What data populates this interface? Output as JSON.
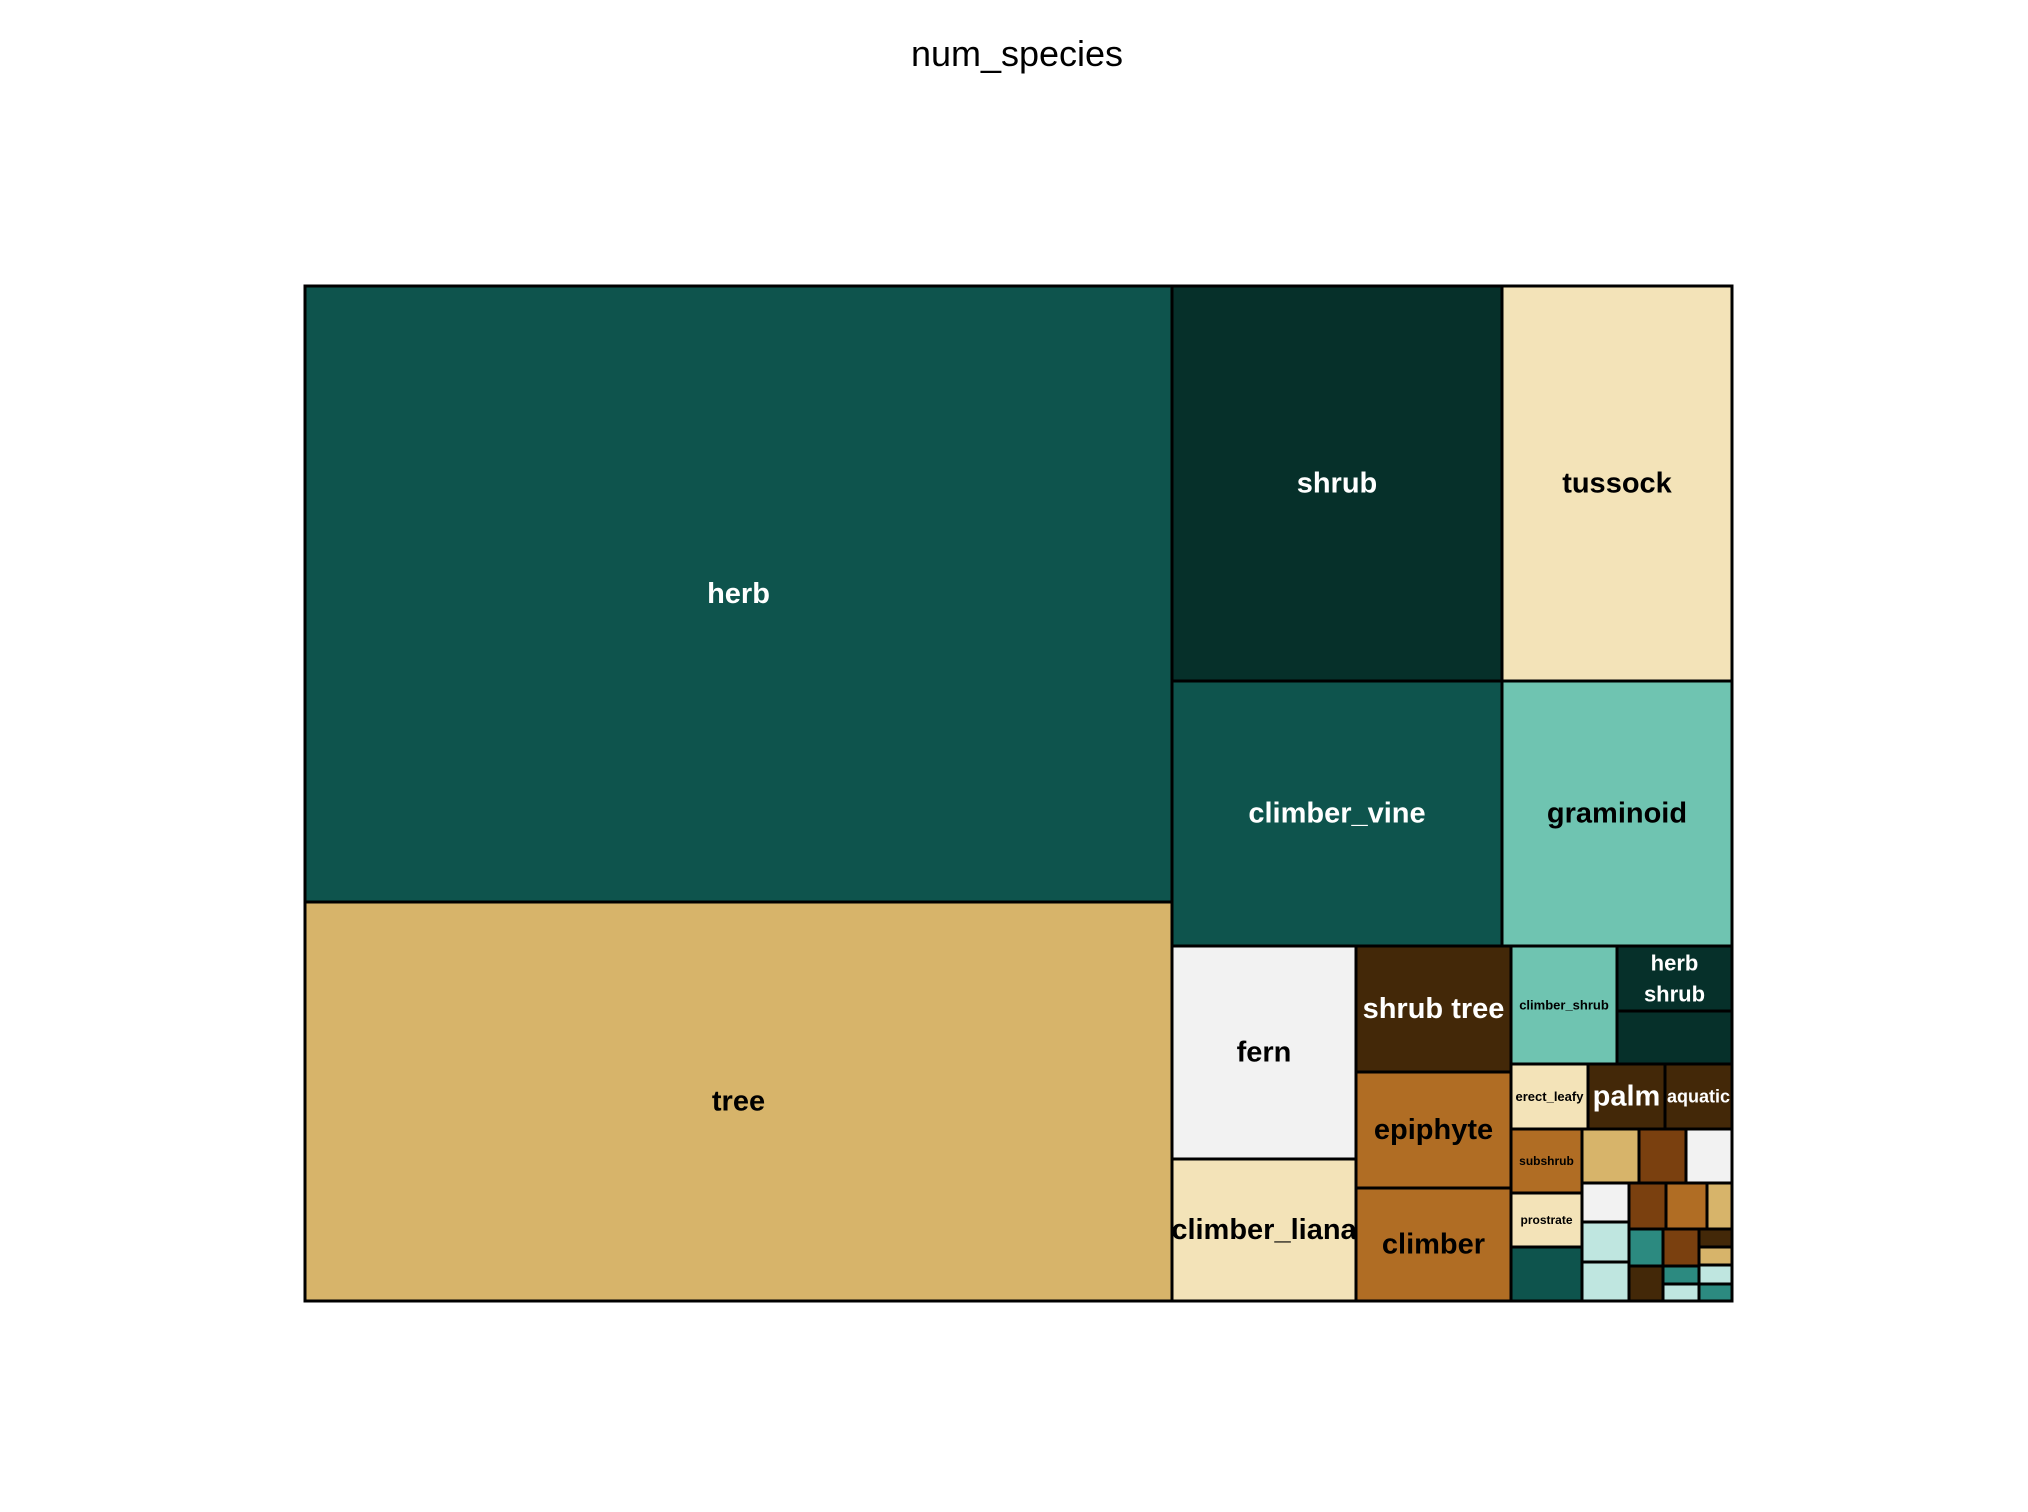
{
  "chart_data": {
    "type": "treemap",
    "title": "num_species",
    "cells": [
      {
        "label": "herb",
        "text": "herb",
        "color": "#0e544d",
        "text_color": "#ffffff",
        "font": 29
      },
      {
        "label": "tree",
        "text": "tree",
        "color": "#d7b46a",
        "text_color": "#000000",
        "font": 29
      },
      {
        "label": "shrub",
        "text": "shrub",
        "color": "#06302a",
        "text_color": "#ffffff",
        "font": 29
      },
      {
        "label": "tussock",
        "text": "tussock",
        "color": "#f3e3b8",
        "text_color": "#000000",
        "font": 29
      },
      {
        "label": "climber_vine",
        "text": "climber_vine",
        "color": "#0e544d",
        "text_color": "#ffffff",
        "font": 29
      },
      {
        "label": "graminoid",
        "text": "graminoid",
        "color": "#6fc4b1",
        "text_color": "#000000",
        "font": 29
      },
      {
        "label": "fern",
        "text": "fern",
        "color": "#f2f2f2",
        "text_color": "#000000",
        "font": 29
      },
      {
        "label": "climber_liana",
        "text": "climber_liana",
        "color": "#f3e3b8",
        "text_color": "#000000",
        "font": 29
      },
      {
        "label": "shrub tree",
        "text": "shrub tree",
        "color": "#432808",
        "text_color": "#ffffff",
        "font": 29
      },
      {
        "label": "epiphyte",
        "text": "epiphyte",
        "color": "#b06d24",
        "text_color": "#000000",
        "font": 29
      },
      {
        "label": "climber",
        "text": "climber",
        "color": "#b06d24",
        "text_color": "#000000",
        "font": 29
      },
      {
        "label": "climber_shrub",
        "text": "climber_shrub",
        "color": "#6fc4b1",
        "text_color": "#000000",
        "font": 13
      },
      {
        "label": "herb shrub",
        "text_lines": [
          "herb",
          "shrub"
        ],
        "color": "#06302a",
        "text_color": "#ffffff",
        "font": 22
      },
      {
        "label": "",
        "color": "#06302a"
      },
      {
        "label": "erect_leafy",
        "text": "erect_leafy",
        "color": "#f3e3b8",
        "text_color": "#000000",
        "font": 13
      },
      {
        "label": "palm",
        "text": "palm",
        "color": "#432808",
        "text_color": "#ffffff",
        "font": 29
      },
      {
        "label": "aquatic",
        "text": "aquatic",
        "color": "#432808",
        "text_color": "#ffffff",
        "font": 18
      },
      {
        "label": "subshrub",
        "text": "subshrub",
        "color": "#b06d24",
        "text_color": "#000000",
        "font": 12
      },
      {
        "label": "",
        "color": "#d7b46a"
      },
      {
        "label": "",
        "color": "#7a400f"
      },
      {
        "label": "",
        "color": "#f2f2f2"
      },
      {
        "label": "prostrate",
        "text": "prostrate",
        "color": "#f3e3b8",
        "text_color": "#000000",
        "font": 12
      },
      {
        "label": "",
        "color": "#0e544d"
      },
      {
        "label": "",
        "color": "#f2f2f2"
      },
      {
        "label": "",
        "color": "#bfe6e0"
      },
      {
        "label": "",
        "color": "#bfe6e0"
      },
      {
        "label": "",
        "color": "#7a400f"
      },
      {
        "label": "",
        "color": "#b06d24"
      },
      {
        "label": "",
        "color": "#d7b46a"
      },
      {
        "label": "",
        "color": "#2c8a80"
      },
      {
        "label": "",
        "color": "#7a400f"
      },
      {
        "label": "",
        "color": "#432808"
      },
      {
        "label": "",
        "color": "#432808"
      },
      {
        "label": "",
        "color": "#d7b46a"
      },
      {
        "label": "",
        "color": "#2c8a80"
      },
      {
        "label": "",
        "color": "#bfe6e0"
      },
      {
        "label": "",
        "color": "#bfe6e0"
      },
      {
        "label": "",
        "color": "#2c8a80"
      }
    ]
  }
}
